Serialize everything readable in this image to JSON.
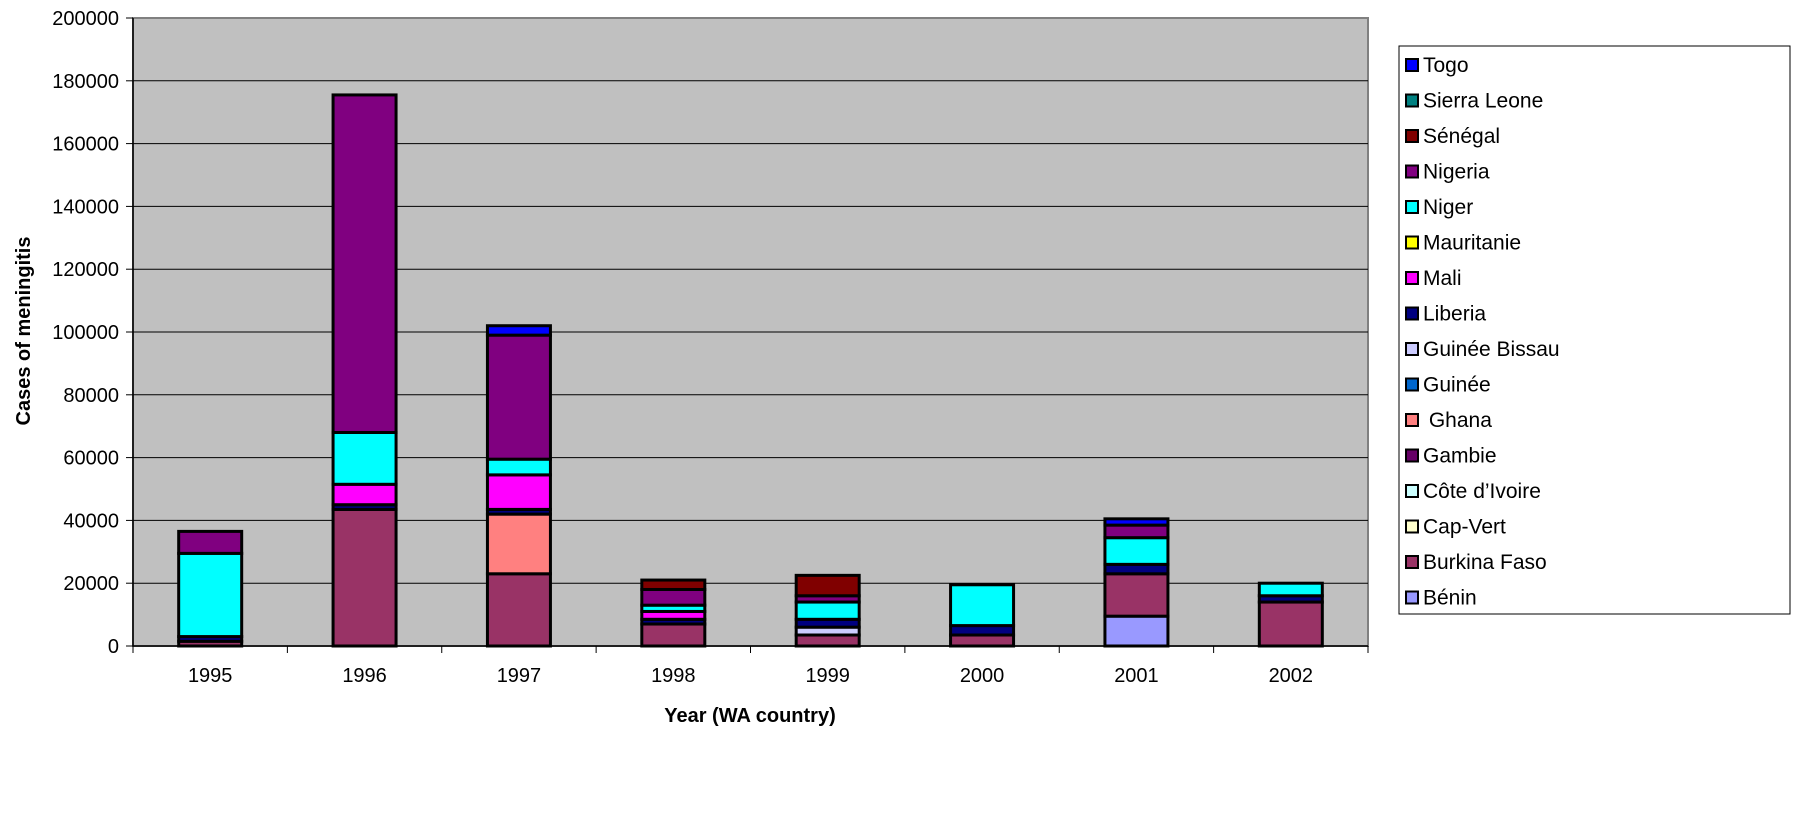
{
  "chart_data": {
    "type": "bar",
    "stacked": true,
    "title": "",
    "xlabel": "Year (WA country)",
    "ylabel": "Cases of meningitis",
    "ylim": [
      0,
      200000
    ],
    "y_ticks": [
      0,
      20000,
      40000,
      60000,
      80000,
      100000,
      120000,
      140000,
      160000,
      180000,
      200000
    ],
    "grid": true,
    "legend_position": "right",
    "plot_background": "#c0c0c0",
    "categories": [
      "1995",
      "1996",
      "1997",
      "1998",
      "1999",
      "2000",
      "2001",
      "2002"
    ],
    "series": [
      {
        "name": "Bénin",
        "color": "#9999ff",
        "values": [
          0,
          0,
          0,
          0,
          0,
          0,
          9500,
          0
        ]
      },
      {
        "name": "Burkina Faso",
        "color": "#993366",
        "values": [
          1500,
          43500,
          23000,
          7000,
          3500,
          3500,
          13500,
          14000
        ]
      },
      {
        "name": "Cap-Vert",
        "color": "#ffffcc",
        "values": [
          0,
          0,
          0,
          0,
          0,
          0,
          0,
          0
        ]
      },
      {
        "name": "Côte d’Ivoire",
        "color": "#ccffff",
        "values": [
          0,
          0,
          0,
          0,
          0,
          0,
          0,
          0
        ]
      },
      {
        "name": " Ghana",
        "color": "#ff8080",
        "values": [
          0,
          0,
          19000,
          0,
          0,
          0,
          0,
          0
        ]
      },
      {
        "name": "Gambie",
        "color": "#660066",
        "values": [
          0,
          0,
          0,
          0,
          0,
          0,
          0,
          0
        ]
      },
      {
        "name": "Guinée",
        "color": "#0066cc",
        "values": [
          0,
          0,
          0,
          0,
          0,
          0,
          0,
          0
        ]
      },
      {
        "name": "Guinée Bissau",
        "color": "#ccccff",
        "values": [
          0,
          0,
          0,
          0,
          2500,
          0,
          0,
          0
        ]
      },
      {
        "name": "Liberia",
        "color": "#000080",
        "values": [
          1500,
          1500,
          1500,
          1500,
          2500,
          3000,
          3000,
          2000
        ]
      },
      {
        "name": "Mali",
        "color": "#ff00ff",
        "values": [
          0,
          6500,
          11000,
          2500,
          0,
          0,
          0,
          0
        ]
      },
      {
        "name": "Mauritanie",
        "color": "#ffff00",
        "values": [
          0,
          0,
          0,
          0,
          0,
          0,
          0,
          0
        ]
      },
      {
        "name": "Niger",
        "color": "#00ffff",
        "values": [
          26500,
          16500,
          5000,
          2000,
          5500,
          13000,
          8500,
          4000
        ]
      },
      {
        "name": "Nigeria",
        "color": "#800080",
        "values": [
          7000,
          107500,
          39500,
          5000,
          2000,
          0,
          4000,
          0
        ]
      },
      {
        "name": "Sénégal",
        "color": "#800000",
        "values": [
          0,
          0,
          0,
          3000,
          6500,
          0,
          0,
          0
        ]
      },
      {
        "name": "Sierra Leone",
        "color": "#008080",
        "values": [
          0,
          0,
          0,
          0,
          0,
          0,
          0,
          0
        ]
      },
      {
        "name": "Togo",
        "color": "#0000ff",
        "values": [
          0,
          0,
          3000,
          0,
          0,
          0,
          2000,
          0
        ]
      }
    ],
    "legend_order": [
      "Togo",
      "Sierra Leone",
      "Sénégal",
      "Nigeria",
      "Niger",
      "Mauritanie",
      "Mali",
      "Liberia",
      "Guinée Bissau",
      "Guinée",
      " Ghana",
      "Gambie",
      "Côte d’Ivoire",
      "Cap-Vert",
      "Burkina Faso",
      "Bénin"
    ]
  }
}
